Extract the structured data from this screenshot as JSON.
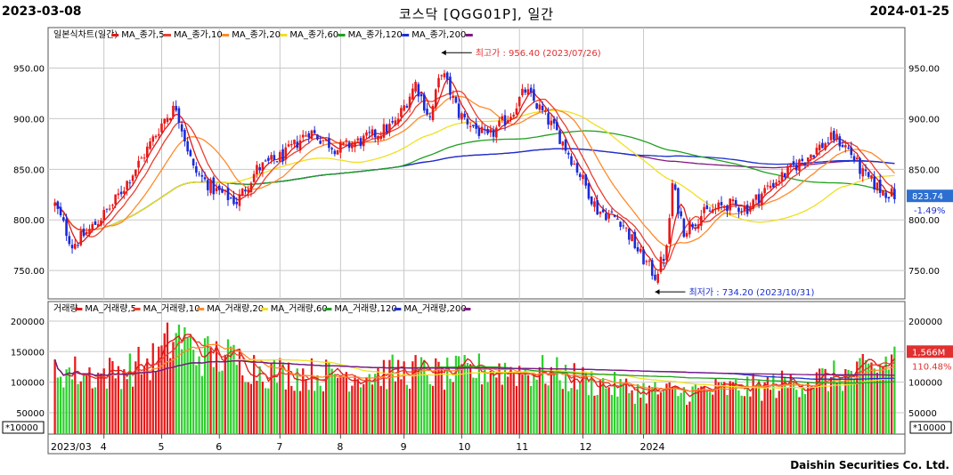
{
  "header": {
    "start_date": "2023-03-08",
    "title": "코스닥 [QGG01P], 일간",
    "end_date": "2024-01-25"
  },
  "footer": "Daishin Securities Co. Ltd.",
  "colors": {
    "up": "#e81818",
    "down": "#1a2ad8",
    "vol_up": "#e81818",
    "vol_down": "#2ed02e",
    "grid": "#c8c8c8",
    "price_badge": "#2c6fd1",
    "vol_badge": "#e03030"
  },
  "chart_data": [
    {
      "type": "candlestick",
      "legend": "일본식차트(일간)",
      "ma_series": [
        {
          "name": "MA_종가,5",
          "color": "#e01818"
        },
        {
          "name": "MA_종가,10",
          "color": "#e84030"
        },
        {
          "name": "MA_종가,20",
          "color": "#ff8a2a"
        },
        {
          "name": "MA_종가,60",
          "color": "#f0e020"
        },
        {
          "name": "MA_종가,120",
          "color": "#20a020"
        },
        {
          "name": "MA_종가,200",
          "color": "#1a30d0"
        },
        {
          "name": "",
          "color": "#801880"
        }
      ],
      "ylim": [
        722,
        990
      ],
      "y_ticks": [
        "950.00",
        "900.00",
        "850.00",
        "800.00",
        "750.00"
      ],
      "y_tick_values": [
        950,
        900,
        850,
        800,
        750
      ],
      "x_ticks": [
        "2023/03",
        "4",
        "5",
        "6",
        "7",
        "8",
        "9",
        "10",
        "11",
        "12",
        "2024"
      ],
      "annotations": {
        "high": "최고가 : 956.40 (2023/07/26)",
        "low": "최저가 : 734.20 (2023/10/31)"
      },
      "last_price": "823.74",
      "last_change": "-1.49%",
      "anchors": [
        {
          "d": 0,
          "v": 815
        },
        {
          "d": 6,
          "v": 775
        },
        {
          "d": 12,
          "v": 790
        },
        {
          "d": 20,
          "v": 815
        },
        {
          "d": 30,
          "v": 860
        },
        {
          "d": 38,
          "v": 900
        },
        {
          "d": 42,
          "v": 912
        },
        {
          "d": 48,
          "v": 850
        },
        {
          "d": 55,
          "v": 830
        },
        {
          "d": 63,
          "v": 818
        },
        {
          "d": 70,
          "v": 850
        },
        {
          "d": 80,
          "v": 865
        },
        {
          "d": 88,
          "v": 888
        },
        {
          "d": 98,
          "v": 870
        },
        {
          "d": 108,
          "v": 880
        },
        {
          "d": 118,
          "v": 895
        },
        {
          "d": 125,
          "v": 935
        },
        {
          "d": 130,
          "v": 900
        },
        {
          "d": 134,
          "v": 948
        },
        {
          "d": 140,
          "v": 905
        },
        {
          "d": 150,
          "v": 880
        },
        {
          "d": 158,
          "v": 905
        },
        {
          "d": 163,
          "v": 928
        },
        {
          "d": 168,
          "v": 910
        },
        {
          "d": 175,
          "v": 882
        },
        {
          "d": 182,
          "v": 845
        },
        {
          "d": 188,
          "v": 810
        },
        {
          "d": 196,
          "v": 800
        },
        {
          "d": 203,
          "v": 765
        },
        {
          "d": 208,
          "v": 745
        },
        {
          "d": 212,
          "v": 770
        },
        {
          "d": 214,
          "v": 835
        },
        {
          "d": 218,
          "v": 790
        },
        {
          "d": 224,
          "v": 805
        },
        {
          "d": 233,
          "v": 815
        },
        {
          "d": 240,
          "v": 812
        },
        {
          "d": 247,
          "v": 832
        },
        {
          "d": 255,
          "v": 850
        },
        {
          "d": 264,
          "v": 870
        },
        {
          "d": 270,
          "v": 882
        },
        {
          "d": 275,
          "v": 870
        },
        {
          "d": 280,
          "v": 845
        },
        {
          "d": 286,
          "v": 830
        },
        {
          "d": 291,
          "v": 824
        }
      ]
    },
    {
      "type": "bar",
      "legend": "거래량",
      "ma_series": [
        {
          "name": "MA_거래량,5",
          "color": "#e01818"
        },
        {
          "name": "MA_거래량,10",
          "color": "#e84030"
        },
        {
          "name": "MA_거래량,20",
          "color": "#ff8a2a"
        },
        {
          "name": "MA_거래량,60",
          "color": "#f0e020"
        },
        {
          "name": "MA_거래량,120",
          "color": "#20a020"
        },
        {
          "name": "MA_거래량,200",
          "color": "#1a30d0"
        },
        {
          "name": "",
          "color": "#801880"
        }
      ],
      "ylim": [
        15000,
        232000
      ],
      "y_ticks": [
        "200000",
        "150000",
        "100000",
        "50000"
      ],
      "y_tick_values": [
        200000,
        150000,
        100000,
        50000
      ],
      "unit": "*10000",
      "last_volume": "1,566M",
      "last_change": "110.48%",
      "anchors": [
        {
          "d": 0,
          "v": 125000
        },
        {
          "d": 15,
          "v": 115000
        },
        {
          "d": 25,
          "v": 125000
        },
        {
          "d": 35,
          "v": 140000
        },
        {
          "d": 42,
          "v": 185000
        },
        {
          "d": 50,
          "v": 150000
        },
        {
          "d": 60,
          "v": 145000
        },
        {
          "d": 75,
          "v": 120000
        },
        {
          "d": 95,
          "v": 115000
        },
        {
          "d": 110,
          "v": 118000
        },
        {
          "d": 125,
          "v": 122000
        },
        {
          "d": 135,
          "v": 115000
        },
        {
          "d": 150,
          "v": 125000
        },
        {
          "d": 170,
          "v": 120000
        },
        {
          "d": 185,
          "v": 105000
        },
        {
          "d": 200,
          "v": 90000
        },
        {
          "d": 215,
          "v": 85000
        },
        {
          "d": 230,
          "v": 90000
        },
        {
          "d": 245,
          "v": 95000
        },
        {
          "d": 260,
          "v": 105000
        },
        {
          "d": 275,
          "v": 115000
        },
        {
          "d": 285,
          "v": 125000
        },
        {
          "d": 291,
          "v": 150000
        }
      ]
    }
  ]
}
